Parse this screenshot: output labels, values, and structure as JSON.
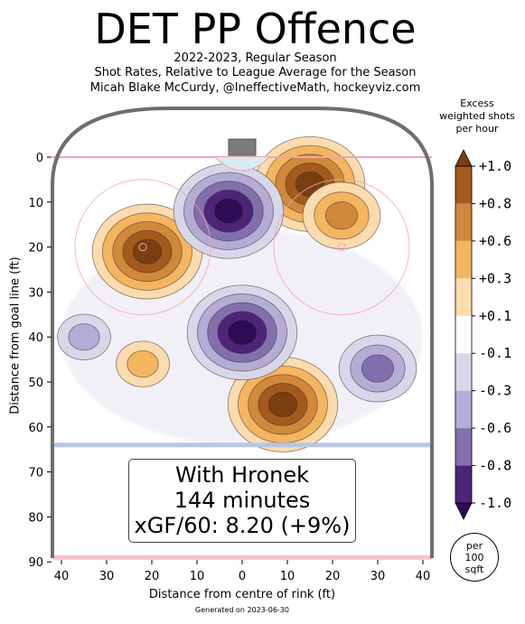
{
  "header": {
    "title": "DET PP Offence",
    "line1": "2022-2023, Regular Season",
    "line2": "Shot Rates, Relative to League Average for the Season",
    "line3": "Micah Blake McCurdy, @IneffectiveMath, hockeyviz.com"
  },
  "colorbar": {
    "title_line1": "Excess",
    "title_line2": "weighted shots",
    "title_line3": "per hour",
    "levels": [
      {
        "label": "+1.0",
        "color": "#7a3f10"
      },
      {
        "label": "+0.8",
        "color": "#a45a1c"
      },
      {
        "label": "+0.6",
        "color": "#d0893a"
      },
      {
        "label": "+0.3",
        "color": "#f4b560"
      },
      {
        "label": "+0.1",
        "color": "#fcdcae"
      },
      {
        "label": "-0.1",
        "color": "#ffffff"
      },
      {
        "label": "-0.3",
        "color": "#d8d7ea"
      },
      {
        "label": "-0.6",
        "color": "#b3acd4"
      },
      {
        "label": "-0.8",
        "color": "#8270ae"
      },
      {
        "label": "-1.0",
        "color": "#4e2478"
      }
    ],
    "over_color": "#7a3f10",
    "under_color": "#2d0b55",
    "unit_line1": "per",
    "unit_line2": "100",
    "unit_line3": "sqft"
  },
  "info": {
    "line1": "With Hronek",
    "line2": "144 minutes",
    "line3": "xGF/60: 8.20 (+9%)"
  },
  "footer": {
    "generated": "Generated on 2023-06-30"
  },
  "chart_data": {
    "type": "heatmap",
    "title": "DET PP Offence",
    "xlabel": "Distance from centre of rink (ft)",
    "ylabel": "Distance from goal line (ft)",
    "xlim": [
      -42.5,
      42.5
    ],
    "ylim": [
      90,
      -11
    ],
    "y_inverted": true,
    "x_ticks": [
      -40,
      -30,
      -20,
      -10,
      0,
      10,
      20,
      30,
      40
    ],
    "x_tick_labels": [
      "40",
      "30",
      "20",
      "10",
      "0",
      "10",
      "20",
      "30",
      "40"
    ],
    "y_ticks": [
      0,
      10,
      20,
      30,
      40,
      50,
      60,
      70,
      80,
      90
    ],
    "y_tick_labels": [
      "0",
      "10",
      "20",
      "30",
      "40",
      "50",
      "60",
      "70",
      "80",
      "90"
    ],
    "contour_levels": [
      -1.0,
      -0.8,
      -0.6,
      -0.3,
      -0.1,
      0.1,
      0.3,
      0.6,
      0.8,
      1.0
    ],
    "hotspots": [
      {
        "x": -21,
        "y": 21,
        "value": 1.0
      },
      {
        "x": 15,
        "y": 6,
        "value": 1.0
      },
      {
        "x": 22,
        "y": 13,
        "value": 0.6
      },
      {
        "x": 9,
        "y": 55,
        "value": 1.0
      },
      {
        "x": -3,
        "y": 12,
        "value": -1.0
      },
      {
        "x": 0,
        "y": 39,
        "value": -1.0
      },
      {
        "x": -35,
        "y": 40,
        "value": -0.3
      },
      {
        "x": 30,
        "y": 47,
        "value": -0.6
      },
      {
        "x": -22,
        "y": 46,
        "value": 0.3
      }
    ],
    "grid": false,
    "legend": "colorbar-right"
  }
}
